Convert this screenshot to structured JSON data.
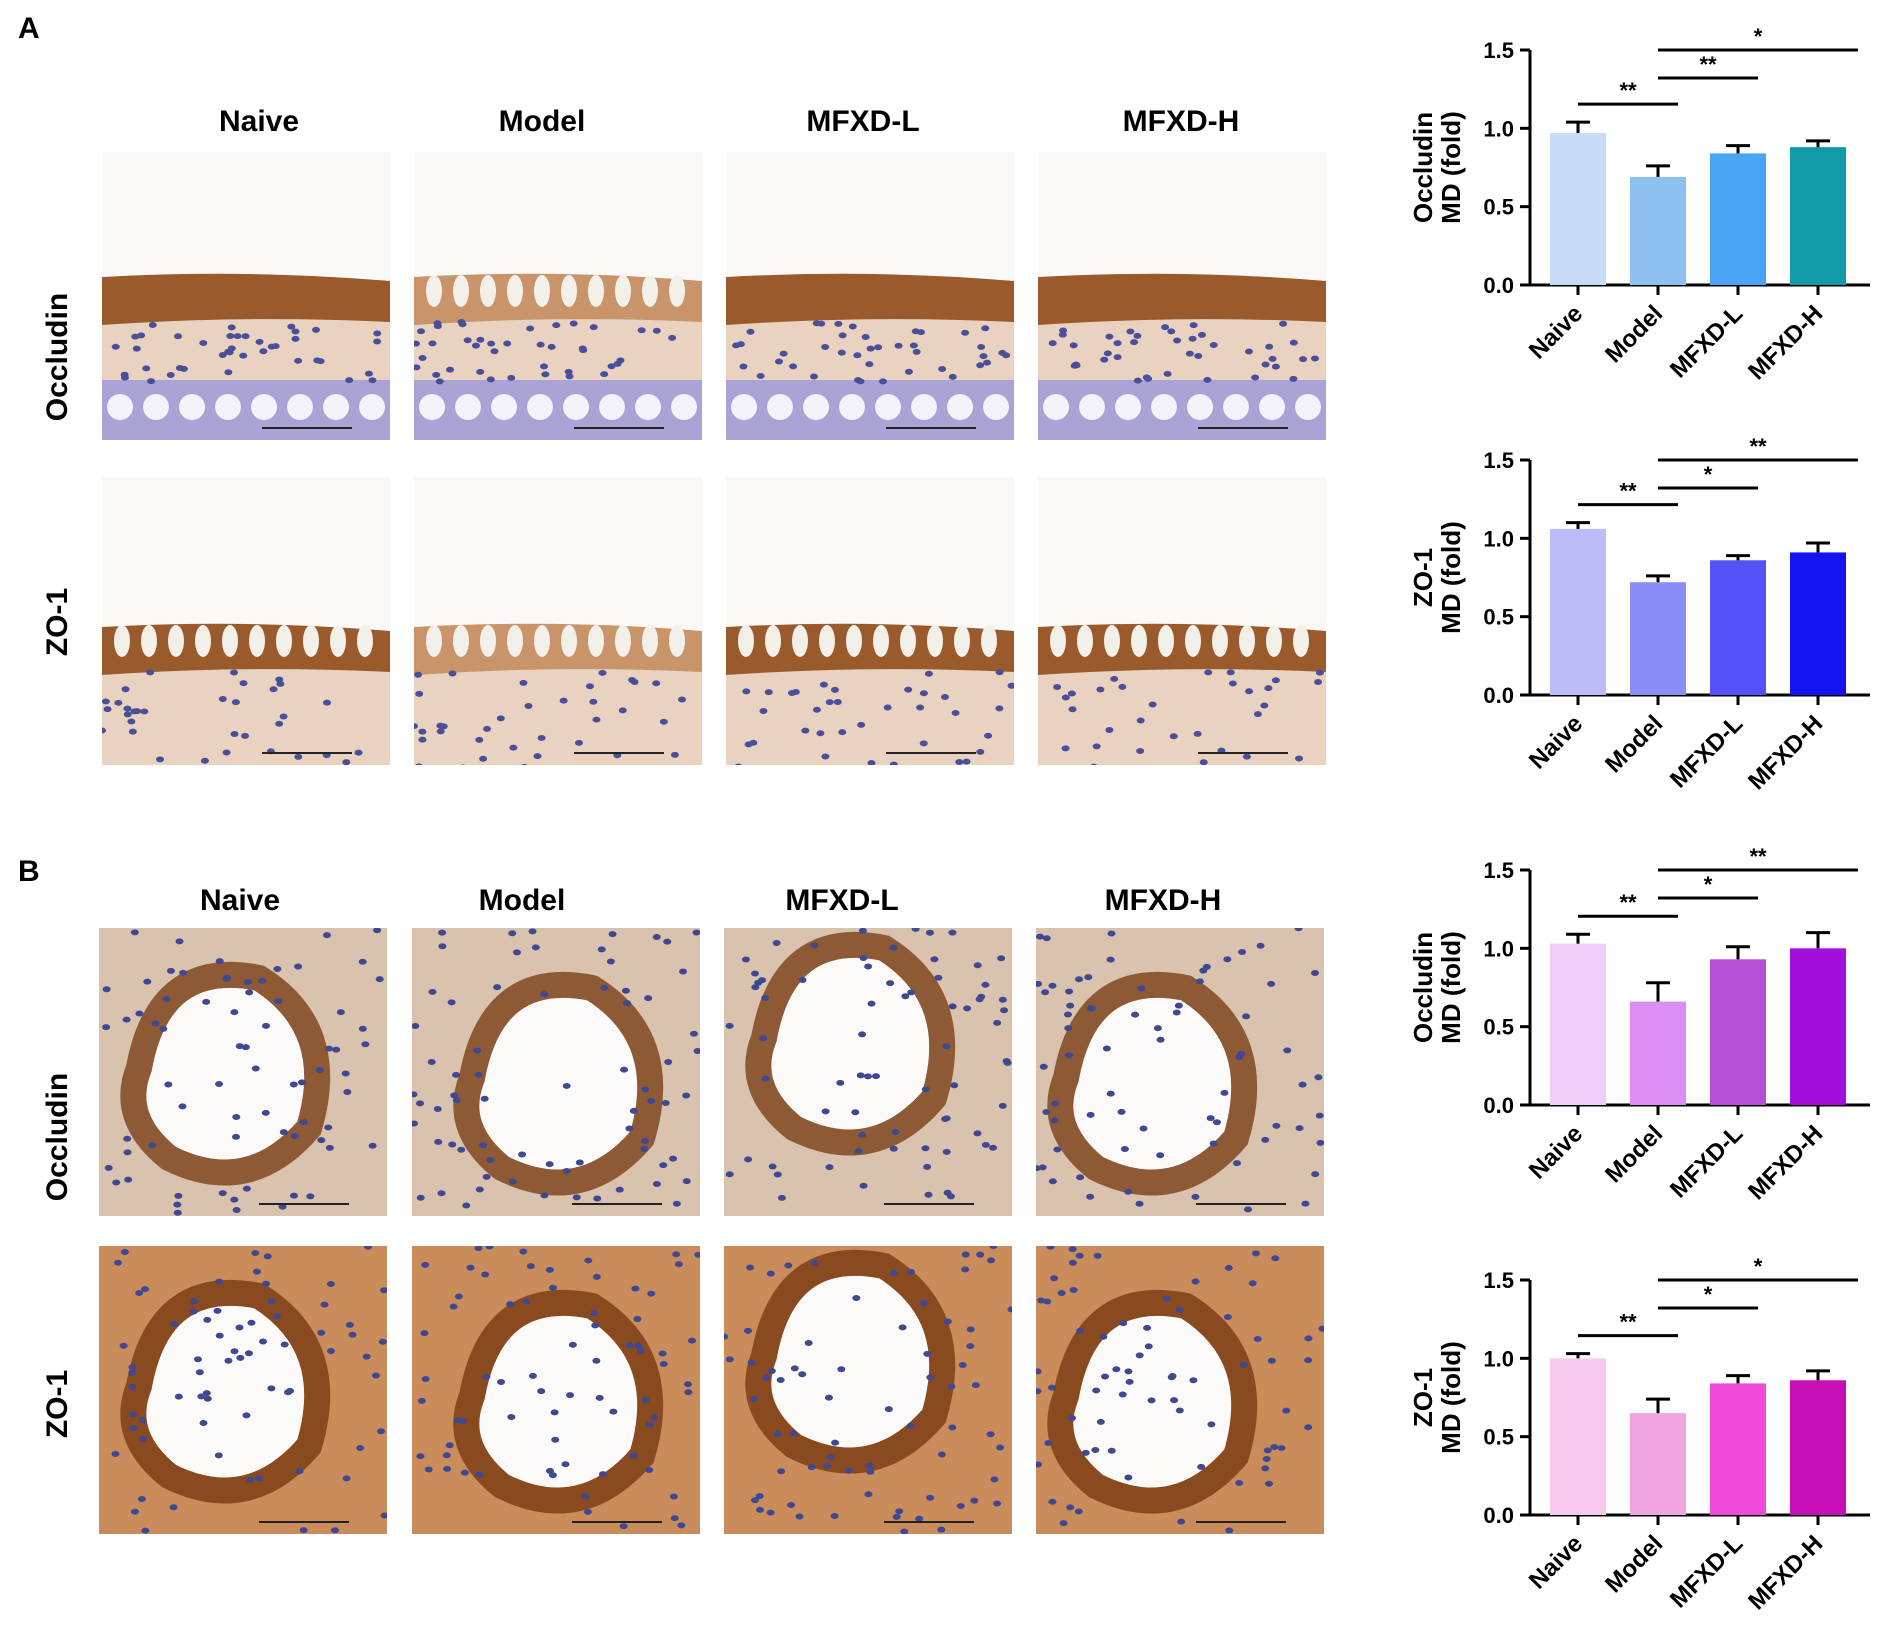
{
  "panels": [
    {
      "letter": "A",
      "columns": [
        "Naive",
        "Model",
        "MFXD-L",
        "MFXD-H"
      ],
      "rows": [
        "Occludin",
        "ZO-1"
      ]
    },
    {
      "letter": "B",
      "columns": [
        "Naive",
        "Model",
        "MFXD-L",
        "MFXD-H"
      ],
      "rows": [
        "Occludin",
        "ZO-1"
      ]
    }
  ],
  "chart_data": [
    {
      "type": "bar",
      "categories": [
        "Naive",
        "Model",
        "MFXD-L",
        "MFXD-H"
      ],
      "values": [
        0.97,
        0.69,
        0.84,
        0.88
      ],
      "errors": [
        0.07,
        0.07,
        0.05,
        0.04
      ],
      "colors": [
        "#c6dcf7",
        "#8fc0f2",
        "#4ba3f5",
        "#129aa9"
      ],
      "ylabel_line1": "Occludin",
      "ylabel_line2": "MD (fold)",
      "ylim": [
        0,
        1.5
      ],
      "yticks": [
        "0.0",
        "0.5",
        "1.0",
        "1.5"
      ],
      "brackets": [
        {
          "from": 0,
          "to": 1,
          "label": "**",
          "level": 0.0
        },
        {
          "from": 1,
          "to": 2,
          "label": "**",
          "level": 1
        },
        {
          "from": 1,
          "to": 3,
          "label": "*",
          "level": 2
        }
      ]
    },
    {
      "type": "bar",
      "categories": [
        "Naive",
        "Model",
        "MFXD-L",
        "MFXD-H"
      ],
      "values": [
        1.06,
        0.72,
        0.86,
        0.91
      ],
      "errors": [
        0.04,
        0.04,
        0.03,
        0.06
      ],
      "colors": [
        "#bcbdf8",
        "#8b8ef6",
        "#5553f7",
        "#1414f2"
      ],
      "ylabel_line1": "ZO-1",
      "ylabel_line2": "MD (fold)",
      "ylim": [
        0,
        1.5
      ],
      "yticks": [
        "0.0",
        "0.5",
        "1.0",
        "1.5"
      ],
      "brackets": [
        {
          "from": 0,
          "to": 1,
          "label": "**",
          "level": 0.0
        },
        {
          "from": 1,
          "to": 2,
          "label": "*",
          "level": 1
        },
        {
          "from": 1,
          "to": 3,
          "label": "**",
          "level": 2
        }
      ]
    },
    {
      "type": "bar",
      "categories": [
        "Naive",
        "Model",
        "MFXD-L",
        "MFXD-H"
      ],
      "values": [
        1.03,
        0.66,
        0.93,
        1.0
      ],
      "errors": [
        0.06,
        0.12,
        0.08,
        0.1
      ],
      "colors": [
        "#f0cdf6",
        "#dc8ef5",
        "#b550d6",
        "#a20fdc"
      ],
      "ylabel_line1": "Occludin",
      "ylabel_line2": "MD (fold)",
      "ylim": [
        0,
        1.5
      ],
      "yticks": [
        "0.0",
        "0.5",
        "1.0",
        "1.5"
      ],
      "brackets": [
        {
          "from": 0,
          "to": 1,
          "label": "**",
          "level": 0.0
        },
        {
          "from": 1,
          "to": 2,
          "label": "*",
          "level": 1
        },
        {
          "from": 1,
          "to": 3,
          "label": "**",
          "level": 2
        }
      ]
    },
    {
      "type": "bar",
      "categories": [
        "Naive",
        "Model",
        "MFXD-L",
        "MFXD-H"
      ],
      "values": [
        1.0,
        0.65,
        0.84,
        0.86
      ],
      "errors": [
        0.03,
        0.09,
        0.05,
        0.06
      ],
      "colors": [
        "#f7c9ee",
        "#f0a5e2",
        "#f04bd6",
        "#c60fb6"
      ],
      "ylabel_line1": "ZO-1",
      "ylabel_line2": "MD (fold)",
      "ylim": [
        0,
        1.5
      ],
      "yticks": [
        "0.0",
        "0.5",
        "1.0",
        "1.5"
      ],
      "brackets": [
        {
          "from": 0,
          "to": 1,
          "label": "**",
          "level": 0.0
        },
        {
          "from": 1,
          "to": 2,
          "label": "*",
          "level": 1
        },
        {
          "from": 1,
          "to": 3,
          "label": "*",
          "level": 2
        }
      ]
    }
  ]
}
